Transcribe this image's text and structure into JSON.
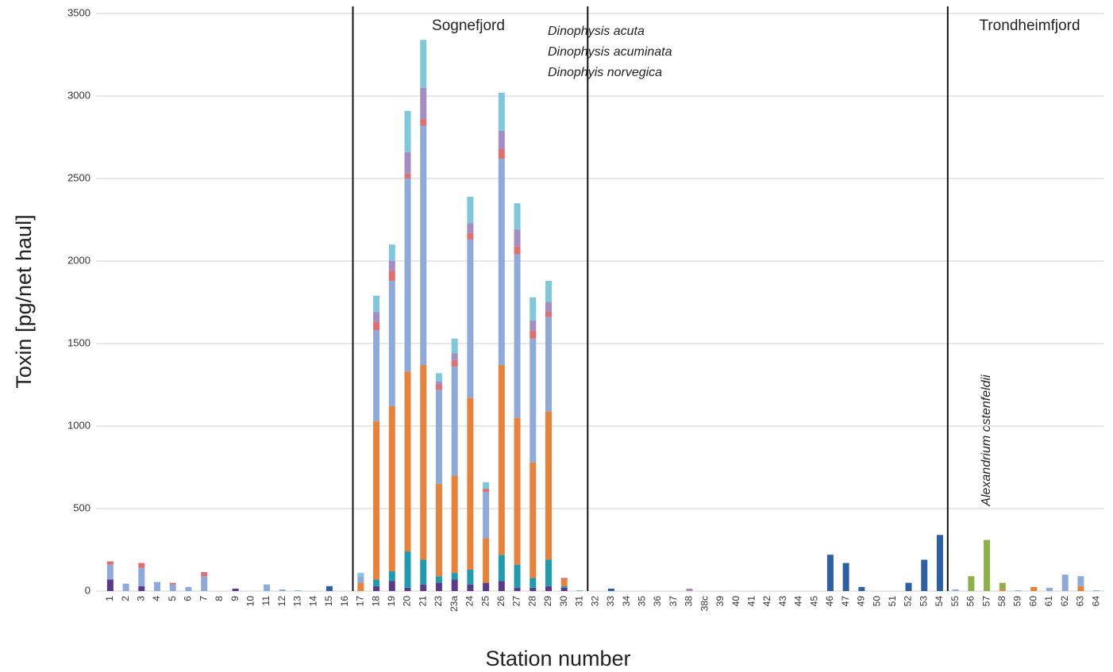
{
  "chart_data": {
    "type": "stacked_bar",
    "y_label": "Toxin [pg/net haul]",
    "x_label": "Station number",
    "annotations": [
      "Sognefjord",
      "Dinophysis acuta",
      "Dinophysis acuminata",
      "Dinophyis norvegica",
      "Trondheimfjord",
      "Alexandrium ostenfeldii"
    ],
    "categories": [
      "1",
      "2",
      "3",
      "4",
      "5",
      "6",
      "7",
      "8",
      "9",
      "10",
      "11",
      "12",
      "13",
      "14",
      "15",
      "16",
      "17",
      "18",
      "19",
      "20",
      "21",
      "23",
      "23a",
      "24",
      "25",
      "26",
      "27",
      "28",
      "29",
      "30",
      "31",
      "32",
      "33",
      "34",
      "35",
      "36",
      "37",
      "38",
      "38c",
      "39",
      "40",
      "41",
      "42",
      "43",
      "44",
      "45",
      "46",
      "47",
      "49",
      "50",
      "51",
      "52",
      "53",
      "54",
      "55",
      "56",
      "57",
      "58",
      "59",
      "60",
      "61",
      "62",
      "63",
      "64"
    ],
    "ylim": [
      0,
      3500
    ],
    "yticks": [
      0,
      500,
      1000,
      1500,
      2000,
      2500,
      3000,
      3500
    ],
    "grid": true,
    "series": [
      {
        "color": "#5b3a8c",
        "values": [
          70,
          0,
          30,
          0,
          0,
          0,
          0,
          0,
          15,
          0,
          0,
          0,
          0,
          0,
          0,
          0,
          0,
          30,
          60,
          20,
          40,
          50,
          70,
          40,
          50,
          60,
          20,
          20,
          30,
          20,
          0,
          0,
          0,
          0,
          0,
          0,
          0,
          0,
          0,
          0,
          0,
          0,
          0,
          0,
          0,
          0,
          0,
          0,
          0,
          0,
          0,
          0,
          0,
          0,
          0,
          0,
          0,
          0,
          0,
          0,
          0,
          0,
          0,
          0
        ]
      },
      {
        "color": "#1f9bb0",
        "values": [
          0,
          0,
          0,
          0,
          0,
          0,
          0,
          0,
          0,
          0,
          0,
          0,
          0,
          0,
          0,
          0,
          0,
          40,
          60,
          220,
          150,
          40,
          40,
          90,
          0,
          160,
          140,
          60,
          160,
          10,
          0,
          0,
          0,
          0,
          0,
          0,
          0,
          0,
          0,
          0,
          0,
          0,
          0,
          0,
          0,
          0,
          0,
          0,
          0,
          0,
          0,
          0,
          0,
          0,
          0,
          0,
          0,
          0,
          0,
          0,
          0,
          0,
          0,
          0
        ]
      },
      {
        "color": "#e8823a",
        "values": [
          0,
          0,
          0,
          0,
          0,
          0,
          0,
          0,
          0,
          0,
          0,
          0,
          0,
          0,
          0,
          0,
          50,
          960,
          1000,
          1090,
          1180,
          560,
          590,
          1040,
          270,
          1150,
          890,
          700,
          900,
          40,
          0,
          0,
          0,
          0,
          0,
          0,
          0,
          0,
          0,
          0,
          0,
          0,
          0,
          0,
          0,
          0,
          0,
          0,
          0,
          0,
          0,
          0,
          0,
          0,
          0,
          0,
          0,
          10,
          0,
          25,
          0,
          0,
          30,
          0
        ]
      },
      {
        "color": "#8eaadb",
        "values": [
          90,
          45,
          110,
          55,
          40,
          25,
          90,
          0,
          0,
          0,
          40,
          10,
          5,
          0,
          0,
          0,
          40,
          550,
          760,
          1170,
          1450,
          570,
          660,
          960,
          280,
          1250,
          990,
          750,
          570,
          0,
          5,
          0,
          0,
          0,
          0,
          0,
          0,
          0,
          0,
          0,
          0,
          0,
          0,
          0,
          0,
          0,
          0,
          0,
          0,
          0,
          0,
          0,
          0,
          0,
          10,
          0,
          0,
          0,
          5,
          0,
          20,
          100,
          60,
          5
        ]
      },
      {
        "color": "#e07070",
        "values": [
          20,
          0,
          30,
          0,
          10,
          0,
          25,
          0,
          0,
          0,
          0,
          0,
          0,
          0,
          0,
          0,
          0,
          50,
          60,
          30,
          40,
          30,
          40,
          40,
          20,
          60,
          50,
          50,
          30,
          10,
          0,
          0,
          0,
          0,
          0,
          0,
          0,
          0,
          0,
          0,
          0,
          0,
          0,
          0,
          0,
          0,
          0,
          0,
          0,
          0,
          0,
          0,
          0,
          0,
          0,
          0,
          0,
          0,
          0,
          0,
          0,
          0,
          0,
          0
        ]
      },
      {
        "color": "#a48dc4",
        "values": [
          0,
          0,
          0,
          0,
          0,
          0,
          0,
          0,
          0,
          0,
          0,
          0,
          0,
          0,
          0,
          0,
          0,
          60,
          60,
          130,
          190,
          20,
          40,
          60,
          0,
          110,
          100,
          60,
          60,
          0,
          0,
          0,
          0,
          0,
          0,
          0,
          0,
          15,
          0,
          0,
          0,
          0,
          0,
          0,
          0,
          0,
          0,
          0,
          0,
          0,
          0,
          0,
          0,
          0,
          0,
          0,
          0,
          0,
          0,
          0,
          0,
          0,
          0,
          0
        ]
      },
      {
        "color": "#7fc8dc",
        "values": [
          0,
          0,
          0,
          0,
          0,
          0,
          0,
          0,
          0,
          0,
          0,
          0,
          0,
          0,
          0,
          0,
          20,
          100,
          100,
          250,
          290,
          50,
          90,
          160,
          40,
          230,
          160,
          140,
          130,
          0,
          0,
          0,
          0,
          0,
          0,
          0,
          0,
          0,
          0,
          0,
          0,
          0,
          0,
          0,
          0,
          0,
          0,
          0,
          0,
          0,
          0,
          0,
          0,
          0,
          0,
          0,
          0,
          0,
          0,
          0,
          0,
          0,
          0,
          0
        ]
      },
      {
        "color": "#2e5fa3",
        "values": [
          0,
          0,
          0,
          0,
          0,
          0,
          0,
          0,
          0,
          0,
          0,
          0,
          0,
          0,
          30,
          0,
          0,
          0,
          0,
          0,
          0,
          0,
          0,
          0,
          0,
          0,
          0,
          0,
          0,
          0,
          0,
          0,
          15,
          0,
          0,
          0,
          0,
          0,
          0,
          0,
          0,
          0,
          0,
          0,
          0,
          0,
          220,
          170,
          25,
          0,
          0,
          50,
          190,
          340,
          0,
          0,
          0,
          0,
          0,
          0,
          0,
          0,
          0,
          0
        ]
      },
      {
        "color": "#8db04a",
        "values": [
          0,
          0,
          0,
          0,
          0,
          0,
          0,
          0,
          0,
          0,
          0,
          0,
          0,
          0,
          0,
          0,
          0,
          0,
          0,
          0,
          0,
          0,
          0,
          0,
          0,
          0,
          0,
          0,
          0,
          0,
          0,
          0,
          0,
          0,
          0,
          0,
          0,
          0,
          0,
          0,
          0,
          0,
          0,
          0,
          0,
          0,
          0,
          0,
          0,
          0,
          0,
          0,
          0,
          0,
          0,
          90,
          310,
          40,
          0,
          0,
          0,
          0,
          0,
          0
        ]
      }
    ]
  }
}
